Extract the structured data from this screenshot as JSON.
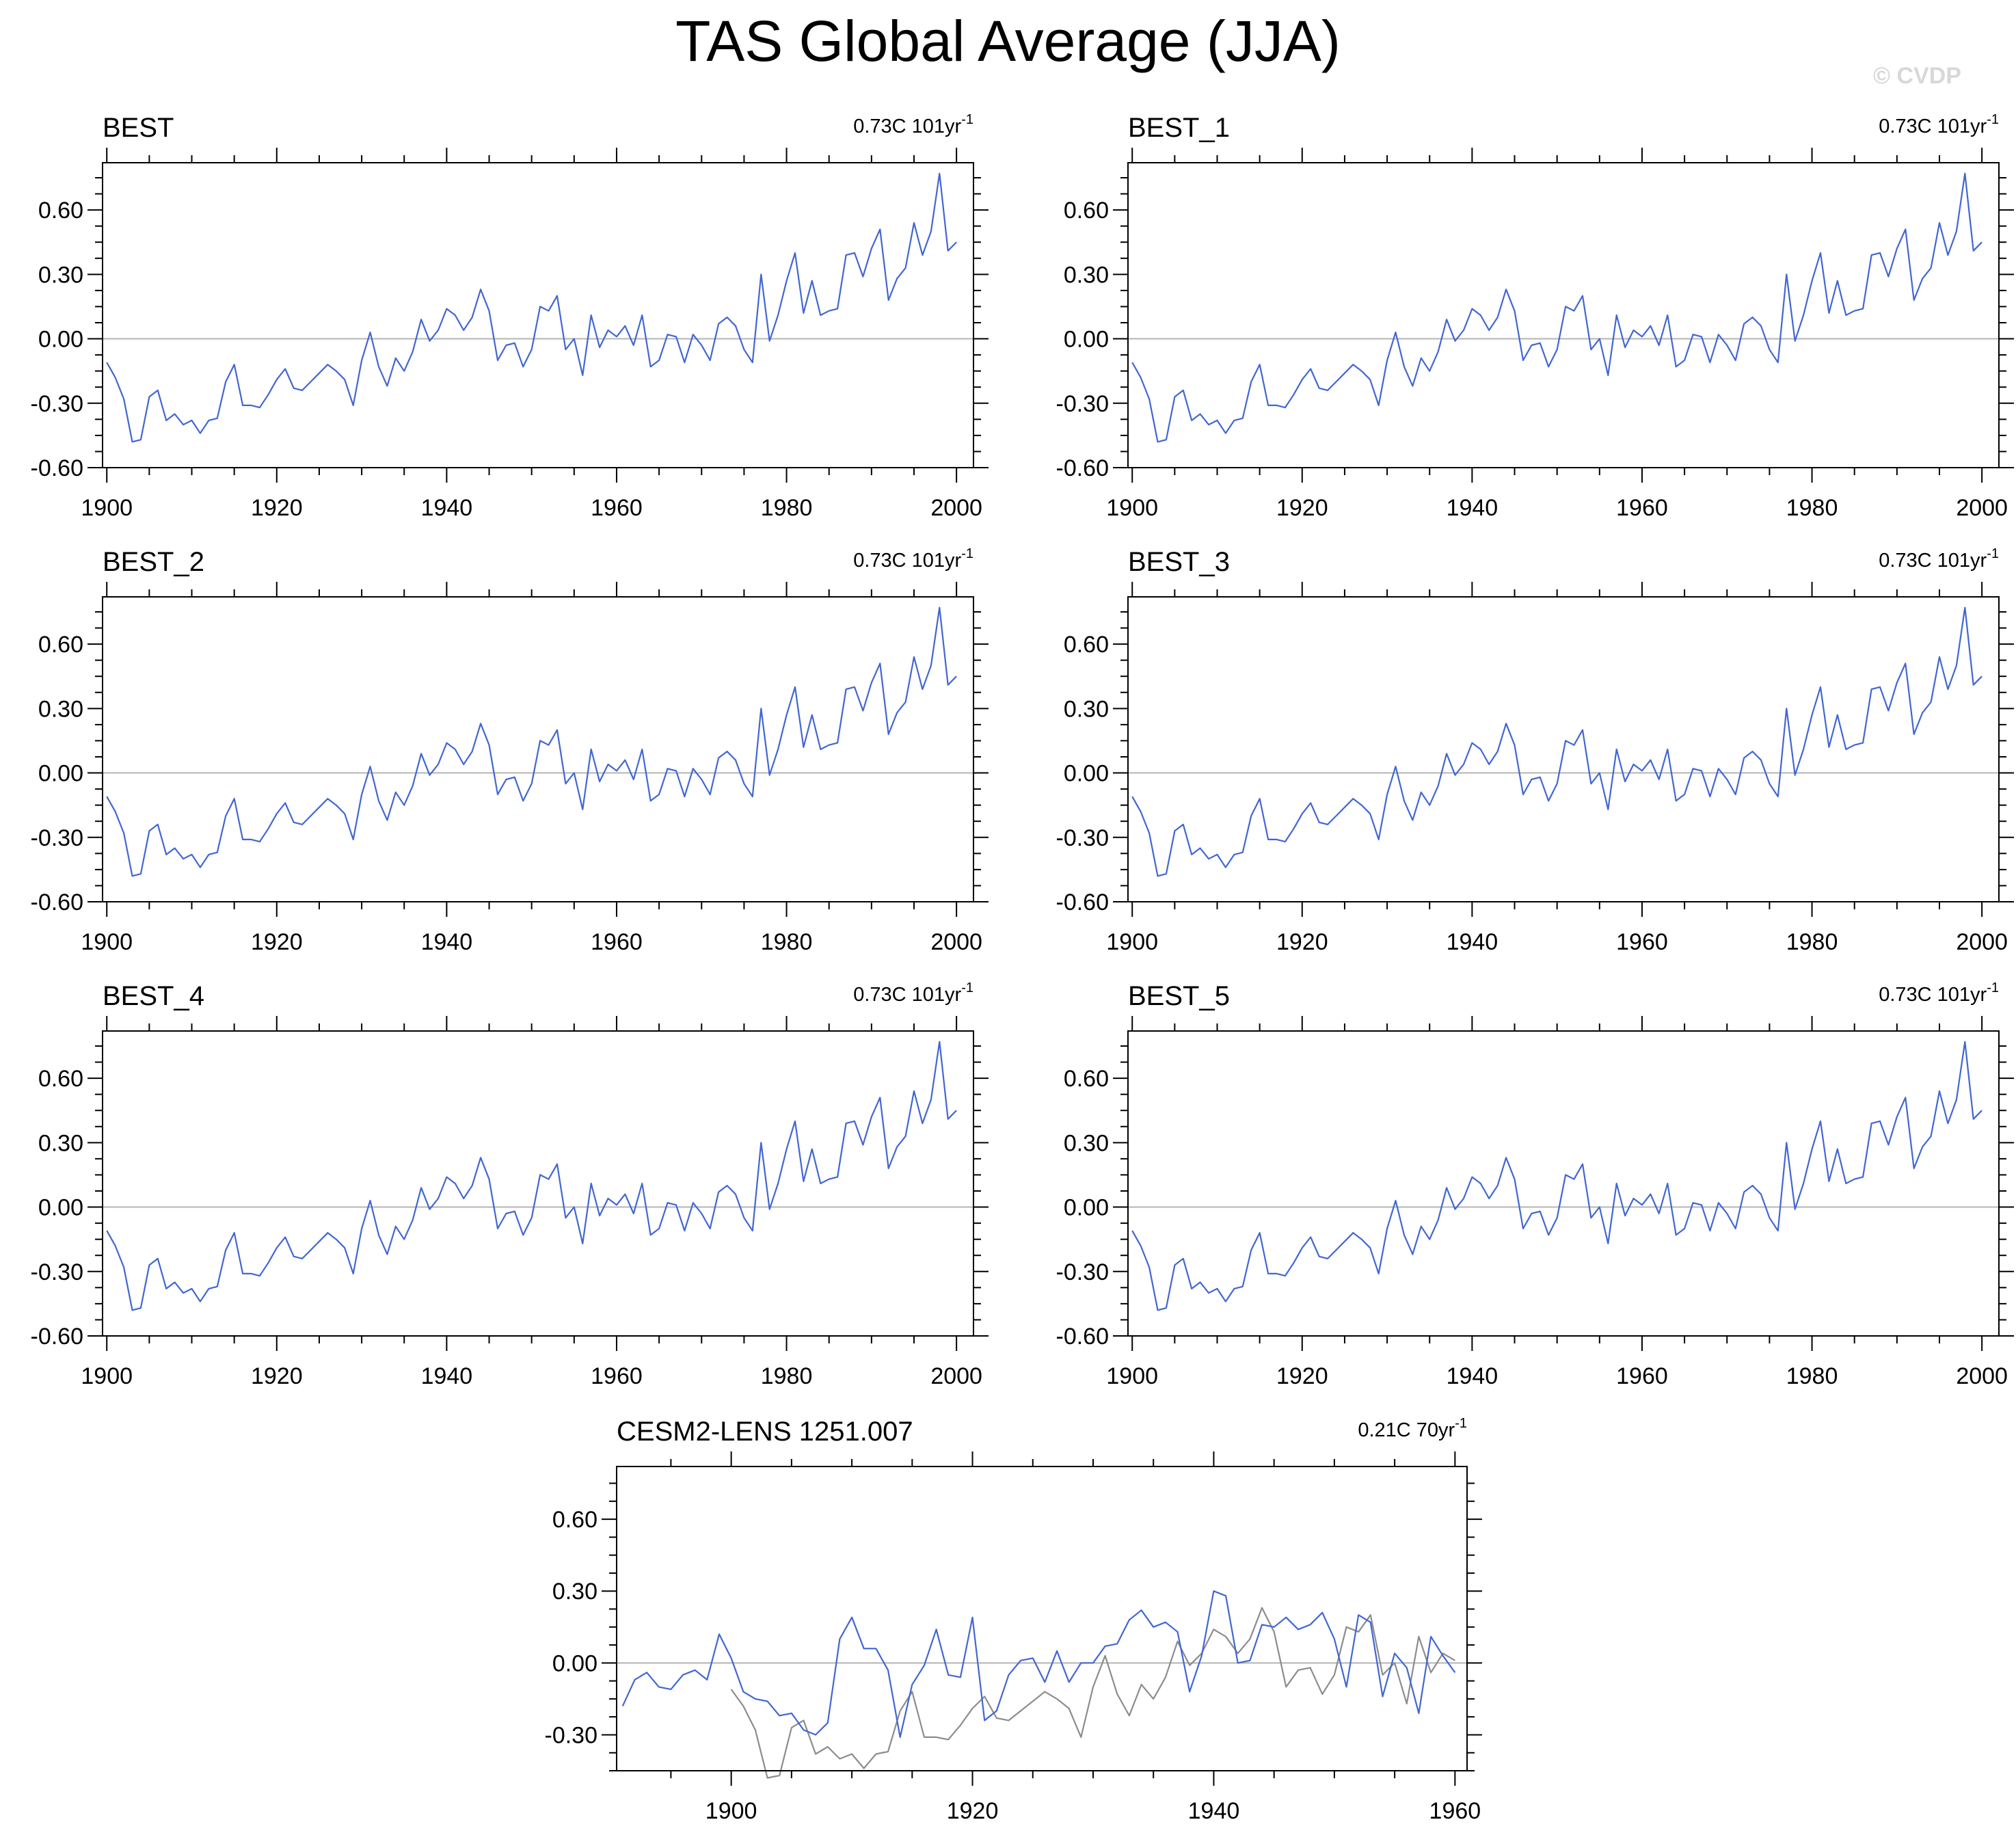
{
  "title": "TAS Global Average (JJA)",
  "watermark": "© CVDP",
  "colors": {
    "observed": "#4166d4",
    "reference": "#8c8c8c",
    "zero_line": "#b4b4b4",
    "axis": "#000000"
  },
  "chart_data": [
    {
      "type": "line",
      "title": "BEST",
      "trend_value": "0.73C",
      "trend_years": "101yr",
      "trend_exponent": "-1",
      "x_start": 1900,
      "xlim": [
        1899.5,
        2002
      ],
      "ylim": [
        -0.6,
        0.82
      ],
      "xticks": [
        1900,
        1920,
        1940,
        1960,
        1980,
        2000
      ],
      "yticks": [
        -0.6,
        -0.3,
        0,
        0.3,
        0.6
      ],
      "ytick_labels": [
        "-0.60",
        "-0.30",
        "0.00",
        "0.30",
        "0.60"
      ],
      "series": [
        {
          "name": "BEST",
          "color": "#4166d4",
          "values": [
            -0.11,
            -0.18,
            -0.28,
            -0.48,
            -0.47,
            -0.27,
            -0.24,
            -0.38,
            -0.35,
            -0.4,
            -0.38,
            -0.44,
            -0.38,
            -0.37,
            -0.2,
            -0.12,
            -0.31,
            -0.31,
            -0.32,
            -0.26,
            -0.19,
            -0.14,
            -0.23,
            -0.24,
            -0.2,
            -0.16,
            -0.12,
            -0.15,
            -0.19,
            -0.31,
            -0.1,
            0.03,
            -0.13,
            -0.22,
            -0.09,
            -0.15,
            -0.06,
            0.09,
            -0.01,
            0.04,
            0.14,
            0.11,
            0.04,
            0.1,
            0.23,
            0.13,
            -0.1,
            -0.03,
            -0.02,
            -0.13,
            -0.05,
            0.15,
            0.13,
            0.2,
            -0.05,
            0.0,
            -0.17,
            0.11,
            -0.04,
            0.04,
            0.01,
            0.06,
            -0.03,
            0.11,
            -0.13,
            -0.1,
            0.02,
            0.01,
            -0.11,
            0.02,
            -0.03,
            -0.1,
            0.07,
            0.1,
            0.06,
            -0.05,
            -0.11,
            0.3,
            -0.01,
            0.11,
            0.27,
            0.4,
            0.12,
            0.27,
            0.11,
            0.13,
            0.14,
            0.39,
            0.4,
            0.29,
            0.42,
            0.51,
            0.18,
            0.28,
            0.33,
            0.54,
            0.39,
            0.5,
            0.77,
            0.41,
            0.45
          ]
        }
      ]
    },
    {
      "type": "line",
      "title": "BEST_1",
      "trend_value": "0.73C",
      "trend_years": "101yr",
      "trend_exponent": "-1",
      "x_start": 1900,
      "xlim": [
        1899.5,
        2002
      ],
      "ylim": [
        -0.6,
        0.82
      ],
      "xticks": [
        1900,
        1920,
        1940,
        1960,
        1980,
        2000
      ],
      "yticks": [
        -0.6,
        -0.3,
        0,
        0.3,
        0.6
      ],
      "ytick_labels": [
        "-0.60",
        "-0.30",
        "0.00",
        "0.30",
        "0.60"
      ],
      "series": [
        {
          "name": "BEST_1",
          "color": "#4166d4",
          "values": [
            -0.11,
            -0.18,
            -0.28,
            -0.48,
            -0.47,
            -0.27,
            -0.24,
            -0.38,
            -0.35,
            -0.4,
            -0.38,
            -0.44,
            -0.38,
            -0.37,
            -0.2,
            -0.12,
            -0.31,
            -0.31,
            -0.32,
            -0.26,
            -0.19,
            -0.14,
            -0.23,
            -0.24,
            -0.2,
            -0.16,
            -0.12,
            -0.15,
            -0.19,
            -0.31,
            -0.1,
            0.03,
            -0.13,
            -0.22,
            -0.09,
            -0.15,
            -0.06,
            0.09,
            -0.01,
            0.04,
            0.14,
            0.11,
            0.04,
            0.1,
            0.23,
            0.13,
            -0.1,
            -0.03,
            -0.02,
            -0.13,
            -0.05,
            0.15,
            0.13,
            0.2,
            -0.05,
            0.0,
            -0.17,
            0.11,
            -0.04,
            0.04,
            0.01,
            0.06,
            -0.03,
            0.11,
            -0.13,
            -0.1,
            0.02,
            0.01,
            -0.11,
            0.02,
            -0.03,
            -0.1,
            0.07,
            0.1,
            0.06,
            -0.05,
            -0.11,
            0.3,
            -0.01,
            0.11,
            0.27,
            0.4,
            0.12,
            0.27,
            0.11,
            0.13,
            0.14,
            0.39,
            0.4,
            0.29,
            0.42,
            0.51,
            0.18,
            0.28,
            0.33,
            0.54,
            0.39,
            0.5,
            0.77,
            0.41,
            0.45
          ]
        }
      ]
    },
    {
      "type": "line",
      "title": "BEST_2",
      "trend_value": "0.73C",
      "trend_years": "101yr",
      "trend_exponent": "-1",
      "x_start": 1900,
      "xlim": [
        1899.5,
        2002
      ],
      "ylim": [
        -0.6,
        0.82
      ],
      "xticks": [
        1900,
        1920,
        1940,
        1960,
        1980,
        2000
      ],
      "yticks": [
        -0.6,
        -0.3,
        0,
        0.3,
        0.6
      ],
      "ytick_labels": [
        "-0.60",
        "-0.30",
        "0.00",
        "0.30",
        "0.60"
      ],
      "series": [
        {
          "name": "BEST_2",
          "color": "#4166d4",
          "values": [
            -0.11,
            -0.18,
            -0.28,
            -0.48,
            -0.47,
            -0.27,
            -0.24,
            -0.38,
            -0.35,
            -0.4,
            -0.38,
            -0.44,
            -0.38,
            -0.37,
            -0.2,
            -0.12,
            -0.31,
            -0.31,
            -0.32,
            -0.26,
            -0.19,
            -0.14,
            -0.23,
            -0.24,
            -0.2,
            -0.16,
            -0.12,
            -0.15,
            -0.19,
            -0.31,
            -0.1,
            0.03,
            -0.13,
            -0.22,
            -0.09,
            -0.15,
            -0.06,
            0.09,
            -0.01,
            0.04,
            0.14,
            0.11,
            0.04,
            0.1,
            0.23,
            0.13,
            -0.1,
            -0.03,
            -0.02,
            -0.13,
            -0.05,
            0.15,
            0.13,
            0.2,
            -0.05,
            0.0,
            -0.17,
            0.11,
            -0.04,
            0.04,
            0.01,
            0.06,
            -0.03,
            0.11,
            -0.13,
            -0.1,
            0.02,
            0.01,
            -0.11,
            0.02,
            -0.03,
            -0.1,
            0.07,
            0.1,
            0.06,
            -0.05,
            -0.11,
            0.3,
            -0.01,
            0.11,
            0.27,
            0.4,
            0.12,
            0.27,
            0.11,
            0.13,
            0.14,
            0.39,
            0.4,
            0.29,
            0.42,
            0.51,
            0.18,
            0.28,
            0.33,
            0.54,
            0.39,
            0.5,
            0.77,
            0.41,
            0.45
          ]
        }
      ]
    },
    {
      "type": "line",
      "title": "BEST_3",
      "trend_value": "0.73C",
      "trend_years": "101yr",
      "trend_exponent": "-1",
      "x_start": 1900,
      "xlim": [
        1899.5,
        2002
      ],
      "ylim": [
        -0.6,
        0.82
      ],
      "xticks": [
        1900,
        1920,
        1940,
        1960,
        1980,
        2000
      ],
      "yticks": [
        -0.6,
        -0.3,
        0,
        0.3,
        0.6
      ],
      "ytick_labels": [
        "-0.60",
        "-0.30",
        "0.00",
        "0.30",
        "0.60"
      ],
      "series": [
        {
          "name": "BEST_3",
          "color": "#4166d4",
          "values": [
            -0.11,
            -0.18,
            -0.28,
            -0.48,
            -0.47,
            -0.27,
            -0.24,
            -0.38,
            -0.35,
            -0.4,
            -0.38,
            -0.44,
            -0.38,
            -0.37,
            -0.2,
            -0.12,
            -0.31,
            -0.31,
            -0.32,
            -0.26,
            -0.19,
            -0.14,
            -0.23,
            -0.24,
            -0.2,
            -0.16,
            -0.12,
            -0.15,
            -0.19,
            -0.31,
            -0.1,
            0.03,
            -0.13,
            -0.22,
            -0.09,
            -0.15,
            -0.06,
            0.09,
            -0.01,
            0.04,
            0.14,
            0.11,
            0.04,
            0.1,
            0.23,
            0.13,
            -0.1,
            -0.03,
            -0.02,
            -0.13,
            -0.05,
            0.15,
            0.13,
            0.2,
            -0.05,
            0.0,
            -0.17,
            0.11,
            -0.04,
            0.04,
            0.01,
            0.06,
            -0.03,
            0.11,
            -0.13,
            -0.1,
            0.02,
            0.01,
            -0.11,
            0.02,
            -0.03,
            -0.1,
            0.07,
            0.1,
            0.06,
            -0.05,
            -0.11,
            0.3,
            -0.01,
            0.11,
            0.27,
            0.4,
            0.12,
            0.27,
            0.11,
            0.13,
            0.14,
            0.39,
            0.4,
            0.29,
            0.42,
            0.51,
            0.18,
            0.28,
            0.33,
            0.54,
            0.39,
            0.5,
            0.77,
            0.41,
            0.45
          ]
        }
      ]
    },
    {
      "type": "line",
      "title": "BEST_4",
      "trend_value": "0.73C",
      "trend_years": "101yr",
      "trend_exponent": "-1",
      "x_start": 1900,
      "xlim": [
        1899.5,
        2002
      ],
      "ylim": [
        -0.6,
        0.82
      ],
      "xticks": [
        1900,
        1920,
        1940,
        1960,
        1980,
        2000
      ],
      "yticks": [
        -0.6,
        -0.3,
        0,
        0.3,
        0.6
      ],
      "ytick_labels": [
        "-0.60",
        "-0.30",
        "0.00",
        "0.30",
        "0.60"
      ],
      "series": [
        {
          "name": "BEST_4",
          "color": "#4166d4",
          "values": [
            -0.11,
            -0.18,
            -0.28,
            -0.48,
            -0.47,
            -0.27,
            -0.24,
            -0.38,
            -0.35,
            -0.4,
            -0.38,
            -0.44,
            -0.38,
            -0.37,
            -0.2,
            -0.12,
            -0.31,
            -0.31,
            -0.32,
            -0.26,
            -0.19,
            -0.14,
            -0.23,
            -0.24,
            -0.2,
            -0.16,
            -0.12,
            -0.15,
            -0.19,
            -0.31,
            -0.1,
            0.03,
            -0.13,
            -0.22,
            -0.09,
            -0.15,
            -0.06,
            0.09,
            -0.01,
            0.04,
            0.14,
            0.11,
            0.04,
            0.1,
            0.23,
            0.13,
            -0.1,
            -0.03,
            -0.02,
            -0.13,
            -0.05,
            0.15,
            0.13,
            0.2,
            -0.05,
            0.0,
            -0.17,
            0.11,
            -0.04,
            0.04,
            0.01,
            0.06,
            -0.03,
            0.11,
            -0.13,
            -0.1,
            0.02,
            0.01,
            -0.11,
            0.02,
            -0.03,
            -0.1,
            0.07,
            0.1,
            0.06,
            -0.05,
            -0.11,
            0.3,
            -0.01,
            0.11,
            0.27,
            0.4,
            0.12,
            0.27,
            0.11,
            0.13,
            0.14,
            0.39,
            0.4,
            0.29,
            0.42,
            0.51,
            0.18,
            0.28,
            0.33,
            0.54,
            0.39,
            0.5,
            0.77,
            0.41,
            0.45
          ]
        }
      ]
    },
    {
      "type": "line",
      "title": "BEST_5",
      "trend_value": "0.73C",
      "trend_years": "101yr",
      "trend_exponent": "-1",
      "x_start": 1900,
      "xlim": [
        1899.5,
        2002
      ],
      "ylim": [
        -0.6,
        0.82
      ],
      "xticks": [
        1900,
        1920,
        1940,
        1960,
        1980,
        2000
      ],
      "yticks": [
        -0.6,
        -0.3,
        0,
        0.3,
        0.6
      ],
      "ytick_labels": [
        "-0.60",
        "-0.30",
        "0.00",
        "0.30",
        "0.60"
      ],
      "series": [
        {
          "name": "BEST_5",
          "color": "#4166d4",
          "values": [
            -0.11,
            -0.18,
            -0.28,
            -0.48,
            -0.47,
            -0.27,
            -0.24,
            -0.38,
            -0.35,
            -0.4,
            -0.38,
            -0.44,
            -0.38,
            -0.37,
            -0.2,
            -0.12,
            -0.31,
            -0.31,
            -0.32,
            -0.26,
            -0.19,
            -0.14,
            -0.23,
            -0.24,
            -0.2,
            -0.16,
            -0.12,
            -0.15,
            -0.19,
            -0.31,
            -0.1,
            0.03,
            -0.13,
            -0.22,
            -0.09,
            -0.15,
            -0.06,
            0.09,
            -0.01,
            0.04,
            0.14,
            0.11,
            0.04,
            0.1,
            0.23,
            0.13,
            -0.1,
            -0.03,
            -0.02,
            -0.13,
            -0.05,
            0.15,
            0.13,
            0.2,
            -0.05,
            0.0,
            -0.17,
            0.11,
            -0.04,
            0.04,
            0.01,
            0.06,
            -0.03,
            0.11,
            -0.13,
            -0.1,
            0.02,
            0.01,
            -0.11,
            0.02,
            -0.03,
            -0.1,
            0.07,
            0.1,
            0.06,
            -0.05,
            -0.11,
            0.3,
            -0.01,
            0.11,
            0.27,
            0.4,
            0.12,
            0.27,
            0.11,
            0.13,
            0.14,
            0.39,
            0.4,
            0.29,
            0.42,
            0.51,
            0.18,
            0.28,
            0.33,
            0.54,
            0.39,
            0.5,
            0.77,
            0.41,
            0.45
          ]
        }
      ]
    },
    {
      "type": "line",
      "title": "CESM2-LENS 1251.007",
      "trend_value": "0.21C",
      "trend_years": "70yr",
      "trend_exponent": "-1",
      "x_start": 1891,
      "xlim": [
        1890.5,
        1961
      ],
      "ylim": [
        -0.45,
        0.82
      ],
      "xticks": [
        1900,
        1920,
        1940,
        1960
      ],
      "yticks": [
        -0.3,
        0,
        0.3,
        0.6
      ],
      "ytick_labels": [
        "-0.30",
        "0.00",
        "0.30",
        "0.60"
      ],
      "series": [
        {
          "name": "CESM2-LENS 1251.007",
          "color": "#4166d4",
          "x_start": 1891,
          "values": [
            -0.18,
            -0.07,
            -0.04,
            -0.1,
            -0.11,
            -0.05,
            -0.03,
            -0.07,
            0.12,
            0.02,
            -0.12,
            -0.15,
            -0.16,
            -0.22,
            -0.21,
            -0.28,
            -0.3,
            -0.25,
            0.1,
            0.19,
            0.06,
            0.06,
            -0.03,
            -0.31,
            -0.09,
            -0.01,
            0.14,
            -0.05,
            -0.06,
            0.19,
            -0.24,
            -0.2,
            -0.05,
            0.01,
            0.02,
            -0.08,
            0.05,
            -0.08,
            0.0,
            0.0,
            0.07,
            0.08,
            0.18,
            0.22,
            0.15,
            0.17,
            0.13,
            -0.12,
            0.03,
            0.3,
            0.28,
            0.0,
            0.01,
            0.16,
            0.15,
            0.19,
            0.14,
            0.16,
            0.21,
            0.1,
            -0.1,
            0.2,
            0.17,
            -0.14,
            0.04,
            -0.02,
            -0.21,
            0.11,
            0.03,
            -0.04
          ]
        },
        {
          "name": "BEST",
          "color": "#8c8c8c",
          "x_start": 1900,
          "values": [
            -0.11,
            -0.18,
            -0.28,
            -0.48,
            -0.47,
            -0.27,
            -0.24,
            -0.38,
            -0.35,
            -0.4,
            -0.38,
            -0.44,
            -0.38,
            -0.37,
            -0.2,
            -0.12,
            -0.31,
            -0.31,
            -0.32,
            -0.26,
            -0.19,
            -0.14,
            -0.23,
            -0.24,
            -0.2,
            -0.16,
            -0.12,
            -0.15,
            -0.19,
            -0.31,
            -0.1,
            0.03,
            -0.13,
            -0.22,
            -0.09,
            -0.15,
            -0.06,
            0.09,
            -0.01,
            0.04,
            0.14,
            0.11,
            0.04,
            0.1,
            0.23,
            0.13,
            -0.1,
            -0.03,
            -0.02,
            -0.13,
            -0.05,
            0.15,
            0.13,
            0.2,
            -0.05,
            0.0,
            -0.17,
            0.11,
            -0.04,
            0.04,
            0.01
          ]
        }
      ]
    }
  ]
}
